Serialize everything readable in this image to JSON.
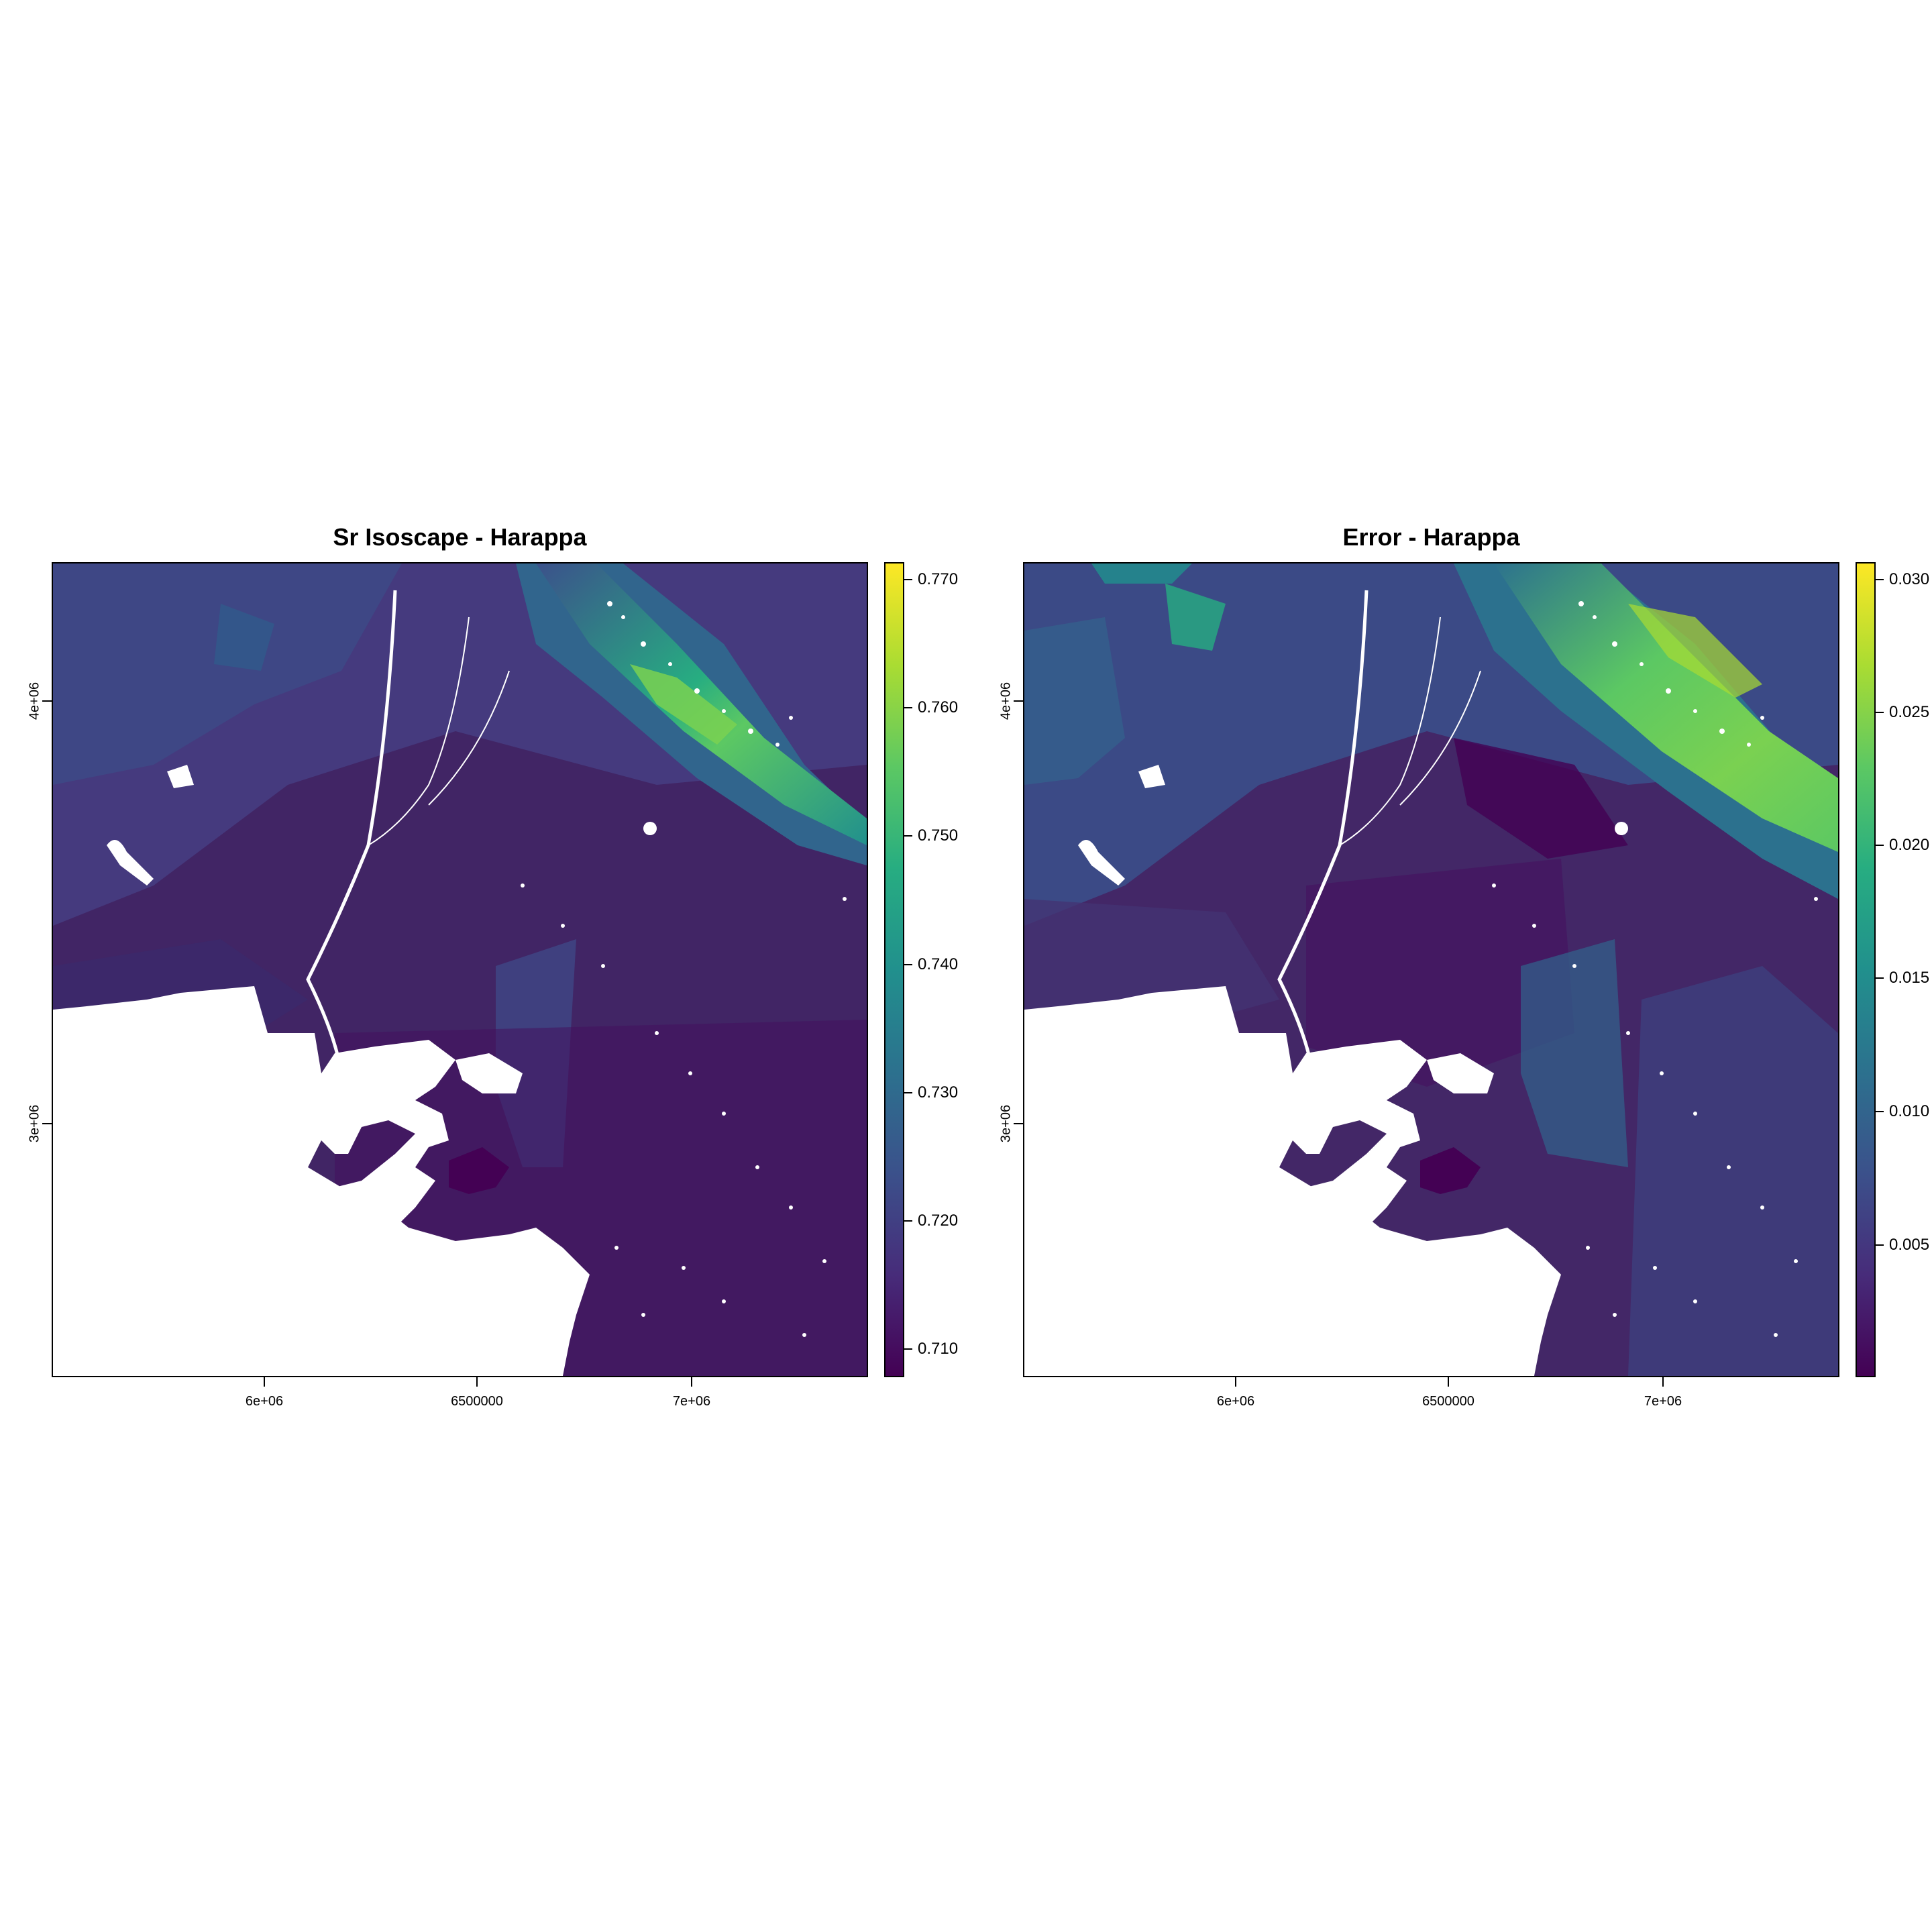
{
  "left_panel": {
    "title": "Sr Isoscape - Harappa",
    "legend_ticks": [
      "0.770",
      "0.760",
      "0.750",
      "0.740",
      "0.730",
      "0.720",
      "0.710"
    ],
    "legend_range": [
      0.7078,
      0.7714
    ]
  },
  "right_panel": {
    "title": "Error - Harappa",
    "legend_ticks": [
      "0.030",
      "0.025",
      "0.020",
      "0.015",
      "0.010",
      "0.005"
    ],
    "legend_range": [
      0.0,
      0.0306
    ]
  },
  "x_axis": {
    "ticks": [
      "6e+06",
      "6500000",
      "7e+06"
    ]
  },
  "y_axis": {
    "ticks": [
      "4e+06",
      "3e+06"
    ]
  },
  "colors": {
    "viridis": [
      "#440154",
      "#472c7a",
      "#3b518b",
      "#2c718e",
      "#21908d",
      "#27ad81",
      "#5cc863",
      "#aadc32",
      "#fde725"
    ],
    "background_sea": "#ffffff"
  }
}
